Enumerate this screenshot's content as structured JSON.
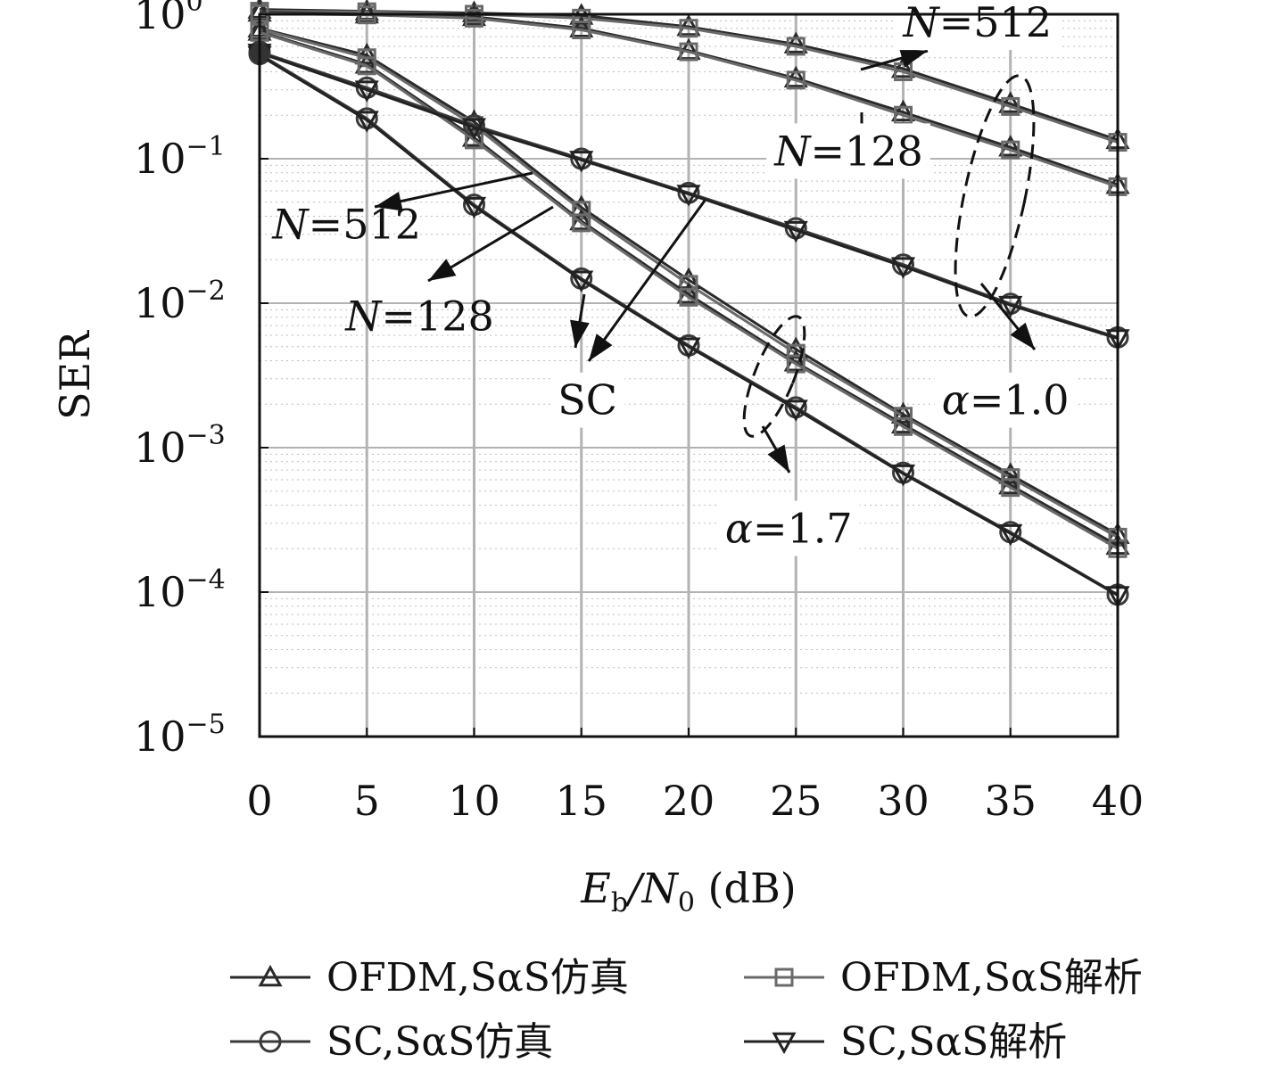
{
  "chart_data": {
    "type": "line",
    "xlabel": "E_b/N_0 (dB)",
    "xlabel_parts": {
      "main": "E",
      "sub1": "b",
      "slash": "/N",
      "sub2": "0",
      "unit": " (dB)"
    },
    "ylabel": "SER",
    "y_scale": "log",
    "xlim": [
      0,
      40
    ],
    "ylim": [
      1e-05,
      1
    ],
    "grid": true,
    "x": [
      0,
      5,
      10,
      15,
      20,
      25,
      30,
      35,
      40
    ],
    "xticks": [
      "0",
      "5",
      "10",
      "15",
      "20",
      "25",
      "30",
      "35",
      "40"
    ],
    "yticks": [
      {
        "base": "10",
        "exp": "0"
      },
      {
        "base": "10",
        "exp": "−1"
      },
      {
        "base": "10",
        "exp": "−2"
      },
      {
        "base": "10",
        "exp": "−3"
      },
      {
        "base": "10",
        "exp": "−4"
      },
      {
        "base": "10",
        "exp": "−5"
      }
    ],
    "series": [
      {
        "name": "OFDM,SαS仿真",
        "group": "N=512, α=1.0",
        "marker": "triangle-up",
        "color": "#2a2a2a",
        "values": [
          1.08,
          1.05,
          1.02,
          0.98,
          0.82,
          0.62,
          0.42,
          0.24,
          0.135
        ]
      },
      {
        "name": "OFDM,SαS解析",
        "group": "N=512, α=1.0",
        "marker": "square",
        "color": "#6a6a6a",
        "values": [
          1.05,
          1.04,
          1.0,
          0.94,
          0.8,
          0.6,
          0.4,
          0.23,
          0.13
        ]
      },
      {
        "name": "OFDM,SαS仿真",
        "group": "N=128, α=1.0",
        "marker": "triangle-up",
        "color": "#2a2a2a",
        "values": [
          1.03,
          1.0,
          0.96,
          0.8,
          0.56,
          0.36,
          0.21,
          0.12,
          0.066
        ]
      },
      {
        "name": "OFDM,SαS解析",
        "group": "N=128, α=1.0",
        "marker": "square",
        "color": "#6a6a6a",
        "values": [
          1.01,
          0.99,
          0.94,
          0.78,
          0.55,
          0.35,
          0.2,
          0.115,
          0.064
        ]
      },
      {
        "name": "OFDM,SαS仿真",
        "group": "N=512, α=1.7",
        "marker": "triangle-up",
        "color": "#2a2a2a",
        "values": [
          0.8,
          0.52,
          0.18,
          0.046,
          0.0145,
          0.0048,
          0.0017,
          0.00065,
          0.00025
        ]
      },
      {
        "name": "OFDM,SαS解析",
        "group": "N=512, α=1.7",
        "marker": "square",
        "color": "#6a6a6a",
        "values": [
          0.79,
          0.5,
          0.17,
          0.044,
          0.0135,
          0.0045,
          0.00165,
          0.00062,
          0.00024
        ]
      },
      {
        "name": "OFDM,SαS仿真",
        "group": "N=128, α=1.7",
        "marker": "triangle-up",
        "color": "#2a2a2a",
        "values": [
          0.76,
          0.45,
          0.14,
          0.037,
          0.0115,
          0.0039,
          0.00145,
          0.00055,
          0.00021
        ]
      },
      {
        "name": "OFDM,SαS解析",
        "group": "N=128, α=1.7",
        "marker": "square",
        "color": "#6a6a6a",
        "values": [
          0.75,
          0.44,
          0.135,
          0.036,
          0.011,
          0.0038,
          0.0014,
          0.00053,
          0.0002
        ]
      },
      {
        "name": "SC,SαS仿真",
        "group": "SC, α=1.0",
        "marker": "circle",
        "color": "#3a3a3a",
        "values": [
          0.55,
          0.31,
          0.17,
          0.1,
          0.058,
          0.033,
          0.0185,
          0.0099,
          0.0058
        ]
      },
      {
        "name": "SC,SαS解析",
        "group": "SC, α=1.0",
        "marker": "triangle-down",
        "color": "#222222",
        "values": [
          0.54,
          0.3,
          0.165,
          0.098,
          0.057,
          0.032,
          0.018,
          0.0097,
          0.0057
        ]
      },
      {
        "name": "SC,SαS仿真",
        "group": "SC, α=1.7",
        "marker": "circle",
        "color": "#3a3a3a",
        "values": [
          0.53,
          0.19,
          0.048,
          0.0148,
          0.0051,
          0.0019,
          0.00067,
          0.00026,
          9.6e-05
        ]
      },
      {
        "name": "SC,SαS解析",
        "group": "SC, α=1.7",
        "marker": "triangle-down",
        "color": "#222222",
        "values": [
          0.52,
          0.185,
          0.047,
          0.0145,
          0.005,
          0.00185,
          0.00066,
          0.000255,
          9.5e-05
        ]
      }
    ],
    "annotations": [
      {
        "label": "N=512",
        "var": "N",
        "rest": "=512",
        "box": true,
        "lx": 30,
        "ly": 0.7,
        "anchor": "start"
      },
      {
        "label": "N=128",
        "var": "N",
        "rest": "=128",
        "box": true,
        "lx": 24,
        "ly": 0.09,
        "anchor": "start"
      },
      {
        "label": "N=512",
        "var": "N",
        "rest": "=512",
        "box": false,
        "lx": 0.6,
        "ly": 0.028,
        "anchor": "start"
      },
      {
        "label": "N=128",
        "var": "N",
        "rest": "=128",
        "box": false,
        "lx": 4.0,
        "ly": 0.0065,
        "anchor": "start"
      },
      {
        "label": "SC",
        "var": "",
        "rest": "SC",
        "box": true,
        "lx": 13.9,
        "ly": 0.0017,
        "anchor": "start"
      },
      {
        "label": "α=1.0",
        "var": "α",
        "rest": "=1.0",
        "box": true,
        "lx": 31.8,
        "ly": 0.0017,
        "anchor": "start"
      },
      {
        "label": "α=1.7",
        "var": "α",
        "rest": "=1.7",
        "box": true,
        "lx": 21.7,
        "ly": 0.00022,
        "anchor": "start"
      }
    ],
    "legend": {
      "placement": "bottom",
      "entries": [
        {
          "label": "OFDM,SαS仿真",
          "marker": "triangle-up",
          "color": "#2a2a2a"
        },
        {
          "label": "OFDM,SαS解析",
          "marker": "square",
          "color": "#6a6a6a"
        },
        {
          "label": "SC,SαS仿真",
          "marker": "circle",
          "color": "#3a3a3a"
        },
        {
          "label": "SC,SαS解析",
          "marker": "triangle-down",
          "color": "#222222"
        }
      ]
    }
  }
}
